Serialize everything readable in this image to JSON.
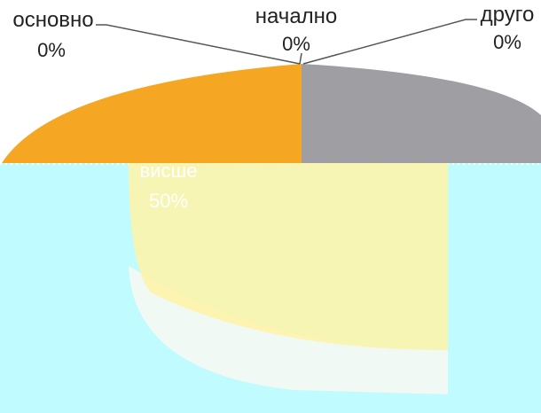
{
  "chart_data": {
    "type": "pie",
    "title": "",
    "slices": [
      {
        "label": "основно",
        "value": 0,
        "display": "0%",
        "color": "#F5A623"
      },
      {
        "label": "начално",
        "value": 0,
        "display": "0%",
        "color": "#9E9EA3"
      },
      {
        "label": "друго",
        "value": 0,
        "display": "0%",
        "color": "#9E9EA3"
      },
      {
        "label": "висше",
        "value": 50,
        "display": "50%",
        "color": "#FFF3A6"
      }
    ],
    "legend": "none",
    "style": "3d-exploded-pie",
    "overlay_color": "#BFFBFF"
  }
}
